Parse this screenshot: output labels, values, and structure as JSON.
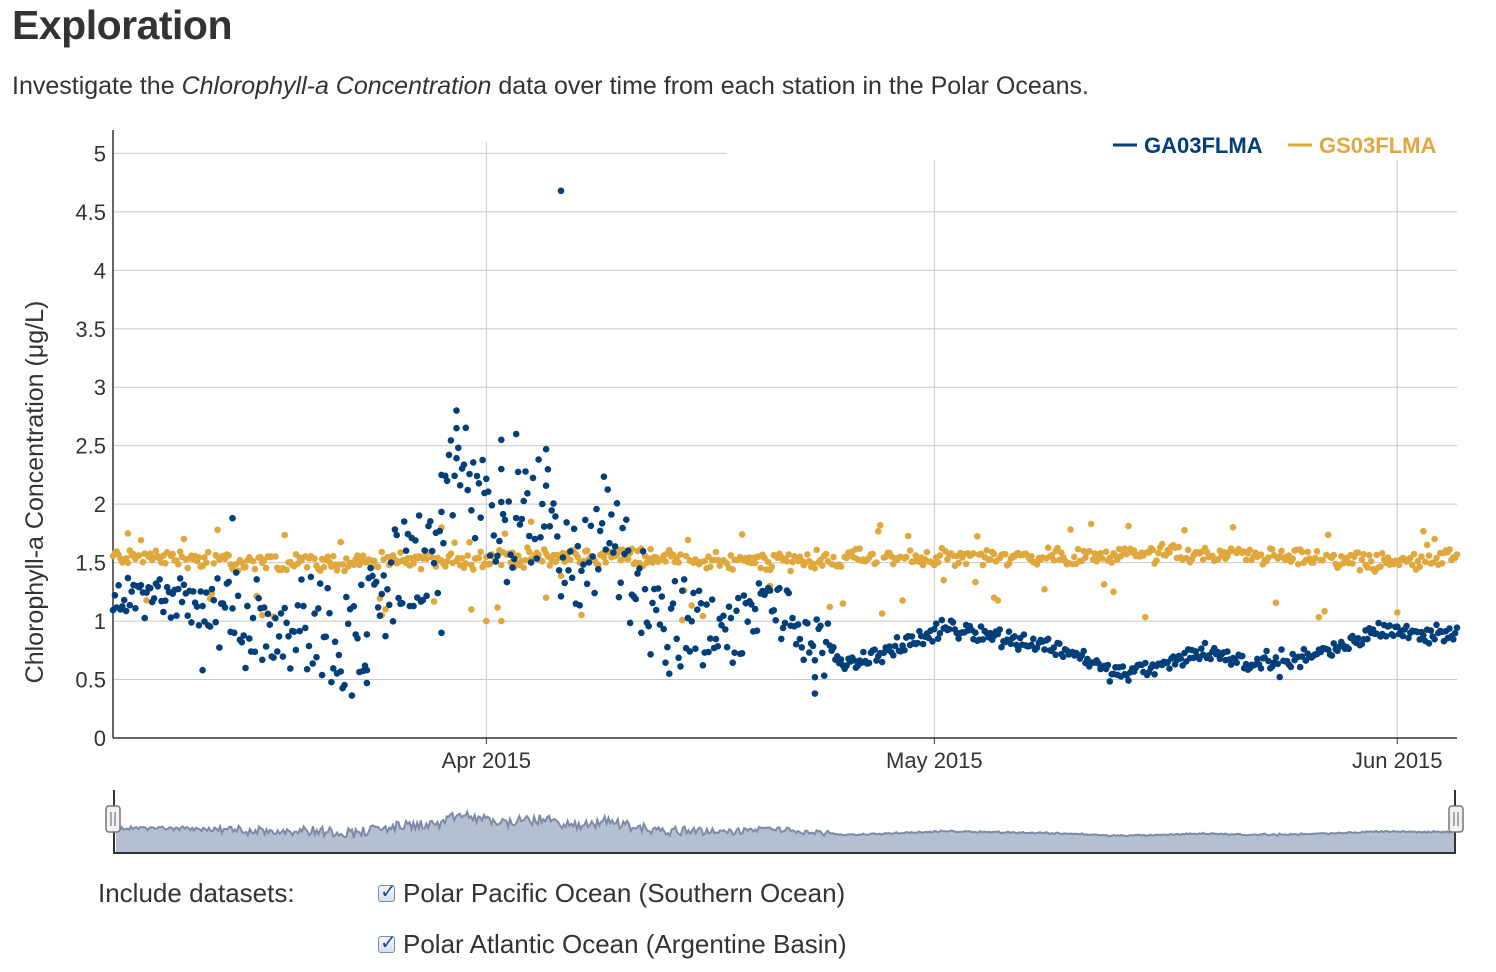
{
  "header": {
    "title": "Exploration",
    "intro_before": "Investigate the ",
    "intro_emph": "Chlorophyll-a Concentration",
    "intro_after": " data over time from each station in the Polar Oceans."
  },
  "colors": {
    "series_a": "#003f7a",
    "series_b": "#e0a83c",
    "grid": "#c8c8c8",
    "navigator_fill": "#b4bfd2",
    "navigator_line": "#7d8aa8"
  },
  "chart_data": {
    "type": "scatter",
    "ylabel": "Chlorophyll-a Concentration (μg/L)",
    "ylim": [
      0,
      5.2
    ],
    "yticks": [
      0,
      0.5,
      1,
      1.5,
      2,
      2.5,
      3,
      3.5,
      4,
      4.5,
      5
    ],
    "ytick_labels": [
      "0",
      "0.5",
      "1",
      "1.5",
      "2",
      "2.5",
      "3",
      "3.5",
      "4",
      "4.5",
      "5"
    ],
    "xlim": [
      "2015-03-07",
      "2015-06-05"
    ],
    "xticks": [
      "2015-04-01",
      "2015-05-01",
      "2015-06-01"
    ],
    "xtick_labels": [
      "Apr 2015",
      "May 2015",
      "Jun 2015"
    ],
    "legend_position": "top-right",
    "grid": true,
    "series": [
      {
        "name": "GA03FLMA",
        "anchors": [
          [
            "2015-03-08",
            1.2
          ],
          [
            "2015-03-11",
            1.2
          ],
          [
            "2015-03-14",
            1.1
          ],
          [
            "2015-03-17",
            1.0
          ],
          [
            "2015-03-20",
            1.0
          ],
          [
            "2015-03-23",
            0.8
          ],
          [
            "2015-03-26",
            1.4
          ],
          [
            "2015-03-29",
            1.6
          ],
          [
            "2015-03-30",
            2.4
          ],
          [
            "2015-04-02",
            1.7
          ],
          [
            "2015-04-03",
            1.8
          ],
          [
            "2015-04-05",
            2.0
          ],
          [
            "2015-04-07",
            1.3
          ],
          [
            "2015-04-09",
            1.9
          ],
          [
            "2015-04-11",
            1.3
          ],
          [
            "2015-04-13",
            0.9
          ],
          [
            "2015-04-15",
            1.1
          ],
          [
            "2015-04-17",
            0.85
          ],
          [
            "2015-04-20",
            1.2
          ],
          [
            "2015-04-22",
            0.9
          ],
          [
            "2015-04-25",
            0.65
          ],
          [
            "2015-04-27",
            0.7
          ],
          [
            "2015-04-30",
            0.85
          ],
          [
            "2015-05-02",
            0.95
          ],
          [
            "2015-05-06",
            0.85
          ],
          [
            "2015-05-10",
            0.75
          ],
          [
            "2015-05-13",
            0.55
          ],
          [
            "2015-05-16",
            0.6
          ],
          [
            "2015-05-19",
            0.75
          ],
          [
            "2015-05-22",
            0.65
          ],
          [
            "2015-05-25",
            0.68
          ],
          [
            "2015-05-28",
            0.75
          ],
          [
            "2015-05-31",
            0.95
          ],
          [
            "2015-06-03",
            0.88
          ],
          [
            "2015-06-05",
            0.9
          ]
        ],
        "outliers": [
          [
            "2015-04-06",
            4.68
          ],
          [
            "2015-03-30",
            2.8
          ],
          [
            "2015-03-30",
            2.65
          ],
          [
            "2015-04-02",
            2.55
          ],
          [
            "2015-04-03",
            2.6
          ],
          [
            "2015-04-05",
            2.47
          ],
          [
            "2015-04-02",
            2.3
          ],
          [
            "2015-03-29",
            2.25
          ],
          [
            "2015-03-24",
            0.47
          ],
          [
            "2015-03-24",
            0.58
          ],
          [
            "2015-04-23",
            0.38
          ],
          [
            "2015-04-23",
            0.52
          ],
          [
            "2015-03-13",
            0.58
          ],
          [
            "2015-03-15",
            1.88
          ],
          [
            "2015-03-29",
            0.9
          ]
        ]
      },
      {
        "name": "GS03FLMA",
        "anchors": [
          [
            "2015-03-08",
            1.55
          ],
          [
            "2015-03-15",
            1.5
          ],
          [
            "2015-03-22",
            1.5
          ],
          [
            "2015-03-29",
            1.52
          ],
          [
            "2015-04-05",
            1.55
          ],
          [
            "2015-04-12",
            1.55
          ],
          [
            "2015-04-19",
            1.5
          ],
          [
            "2015-04-26",
            1.55
          ],
          [
            "2015-05-03",
            1.55
          ],
          [
            "2015-05-10",
            1.55
          ],
          [
            "2015-05-17",
            1.58
          ],
          [
            "2015-05-24",
            1.55
          ],
          [
            "2015-05-31",
            1.5
          ],
          [
            "2015-06-05",
            1.55
          ]
        ],
        "outliers": [
          [
            "2015-03-08",
            1.75
          ],
          [
            "2015-03-14",
            1.78
          ],
          [
            "2015-03-29",
            1.8
          ],
          [
            "2015-04-04",
            1.85
          ],
          [
            "2015-04-05",
            1.2
          ],
          [
            "2015-04-10",
            1.6
          ],
          [
            "2015-04-20",
            1.3
          ],
          [
            "2015-05-05",
            1.2
          ],
          [
            "2015-05-13",
            1.25
          ],
          [
            "2015-04-01",
            1.0
          ],
          [
            "2015-03-17",
            1.05
          ],
          [
            "2015-03-25",
            1.05
          ],
          [
            "2015-04-02",
            1.0
          ],
          [
            "2015-03-31",
            1.1
          ]
        ]
      }
    ]
  },
  "controls": {
    "label": "Include datasets:",
    "datasets": [
      {
        "label": "Polar Pacific Ocean (Southern Ocean)",
        "checked": true
      },
      {
        "label": "Polar Atlantic Ocean (Argentine Basin)",
        "checked": true
      }
    ]
  }
}
